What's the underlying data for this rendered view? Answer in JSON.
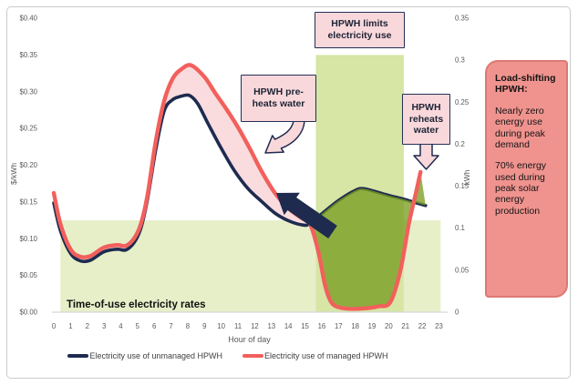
{
  "figure": {
    "background": "#ffffff",
    "border_color": "#cbcbcb"
  },
  "chart_data": {
    "type": "line",
    "xlabel": "Hour of day",
    "ylabel_left": "$/kWh",
    "ylabel_right": "kWh",
    "x_ticks": [
      0,
      1,
      2,
      3,
      4,
      5,
      6,
      7,
      8,
      9,
      10,
      11,
      12,
      13,
      14,
      15,
      16,
      17,
      18,
      19,
      20,
      21,
      22,
      23
    ],
    "y_left": {
      "min": 0,
      "max": 0.4,
      "ticks": [
        {
          "label": "$0.40",
          "v": 0.4
        },
        {
          "label": "$0.35",
          "v": 0.35
        },
        {
          "label": "$0.30",
          "v": 0.3
        },
        {
          "label": "$0.25",
          "v": 0.25
        },
        {
          "label": "$0.20",
          "v": 0.2
        },
        {
          "label": "$0.15",
          "v": 0.15
        },
        {
          "label": "$0.10",
          "v": 0.1
        },
        {
          "label": "$0.05",
          "v": 0.05
        },
        {
          "label": "$0.00",
          "v": 0.0
        }
      ]
    },
    "y_right": {
      "min": 0,
      "max": 0.35,
      "ticks": [
        {
          "label": "0.35",
          "v": 0.35
        },
        {
          "label": "0.3",
          "v": 0.3
        },
        {
          "label": "0.25",
          "v": 0.25
        },
        {
          "label": "0.2",
          "v": 0.2
        },
        {
          "label": "0.15",
          "v": 0.15
        },
        {
          "label": "0.1",
          "v": 0.1
        },
        {
          "label": "0.05",
          "v": 0.05
        },
        {
          "label": "0",
          "v": 0.0
        }
      ]
    },
    "series": [
      {
        "name": "Electricity use of unmanaged HPWH",
        "color": "#1e2b4f",
        "axis": "right",
        "width": 3.6,
        "points": [
          [
            0,
            0.13
          ],
          [
            0.4,
            0.097
          ],
          [
            1,
            0.07
          ],
          [
            1.6,
            0.061
          ],
          [
            2.2,
            0.062
          ],
          [
            3,
            0.072
          ],
          [
            3.8,
            0.075
          ],
          [
            4.3,
            0.074
          ],
          [
            4.8,
            0.083
          ],
          [
            5.2,
            0.1
          ],
          [
            5.6,
            0.135
          ],
          [
            6.1,
            0.195
          ],
          [
            6.6,
            0.24
          ],
          [
            7.1,
            0.253
          ],
          [
            7.6,
            0.257
          ],
          [
            8.1,
            0.258
          ],
          [
            8.6,
            0.248
          ],
          [
            9.2,
            0.225
          ],
          [
            10,
            0.195
          ],
          [
            10.8,
            0.168
          ],
          [
            11.6,
            0.147
          ],
          [
            12.4,
            0.132
          ],
          [
            13.2,
            0.118
          ],
          [
            14,
            0.109
          ],
          [
            14.8,
            0.104
          ],
          [
            15.3,
            0.105
          ],
          [
            16,
            0.117
          ],
          [
            17,
            0.133
          ],
          [
            18,
            0.145
          ],
          [
            18.5,
            0.147
          ],
          [
            19.3,
            0.143
          ],
          [
            20,
            0.139
          ],
          [
            20.8,
            0.135
          ],
          [
            21.5,
            0.131
          ],
          [
            22.2,
            0.127
          ]
        ]
      },
      {
        "name": "Electricity use of managed HPWH",
        "color": "#f2605c",
        "axis": "right",
        "width": 4.4,
        "points": [
          [
            0,
            0.142
          ],
          [
            0.4,
            0.105
          ],
          [
            1,
            0.075
          ],
          [
            1.6,
            0.066
          ],
          [
            2.2,
            0.067
          ],
          [
            3,
            0.077
          ],
          [
            3.8,
            0.08
          ],
          [
            4.3,
            0.079
          ],
          [
            4.8,
            0.088
          ],
          [
            5.2,
            0.105
          ],
          [
            5.6,
            0.14
          ],
          [
            6.1,
            0.205
          ],
          [
            6.6,
            0.252
          ],
          [
            7.1,
            0.278
          ],
          [
            7.6,
            0.289
          ],
          [
            8.2,
            0.294
          ],
          [
            9,
            0.28
          ],
          [
            9.6,
            0.262
          ],
          [
            10.3,
            0.242
          ],
          [
            11,
            0.22
          ],
          [
            11.7,
            0.195
          ],
          [
            12.4,
            0.168
          ],
          [
            13.2,
            0.142
          ],
          [
            14,
            0.124
          ],
          [
            14.8,
            0.112
          ],
          [
            15.3,
            0.105
          ],
          [
            15.8,
            0.072
          ],
          [
            16.2,
            0.032
          ],
          [
            16.6,
            0.011
          ],
          [
            17.2,
            0.005
          ],
          [
            18,
            0.004
          ],
          [
            18.8,
            0.005
          ],
          [
            19.4,
            0.007
          ],
          [
            20.1,
            0.012
          ],
          [
            20.7,
            0.05
          ],
          [
            21.2,
            0.105
          ],
          [
            21.6,
            0.14
          ],
          [
            21.9,
            0.167
          ]
        ]
      }
    ],
    "fills": [
      {
        "name": "preheat-fill",
        "color": "#fadbde",
        "opacity": 1,
        "top_series": 1,
        "bottom_series": 0,
        "from": 0,
        "to": 15.3
      },
      {
        "name": "solar-shift-fill",
        "color": "#7a9e22",
        "opacity": 0.78,
        "top_series": 0,
        "bottom_series": 1,
        "from": 15.3,
        "to": 22.2
      }
    ],
    "tou": {
      "label": "Time-of-use electricity rates",
      "offpeak_color": "#e7efc9",
      "peak_color": "#d7e5a5",
      "axis": "left",
      "segments": [
        {
          "from": 0.4,
          "to": 15.65,
          "rate": 0.125,
          "peak": false
        },
        {
          "from": 15.65,
          "to": 20.9,
          "rate": 0.35,
          "peak": true
        },
        {
          "from": 20.9,
          "to": 23.1,
          "rate": 0.125,
          "peak": false
        }
      ]
    },
    "legend_position": "bottom"
  },
  "annotations": {
    "limits_box": {
      "text": "HPWH limits electricity use"
    },
    "preheats_box": {
      "text": "HPWH pre-heats water"
    },
    "reheats_box": {
      "text": "HPWH reheats water"
    }
  },
  "sidebar": {
    "heading": "Load-shifting HPWH:",
    "para1": "Nearly zero energy use during peak demand",
    "para2": "70% energy used  during peak solar energy production",
    "fill": "#f0938e",
    "border": "#dd7973"
  },
  "colors": {
    "arrow_navy": "#1e2b4f",
    "arrow_pink": "#f9d8db",
    "axis_text": "#595959",
    "axis_line": "#d6d6d6"
  }
}
